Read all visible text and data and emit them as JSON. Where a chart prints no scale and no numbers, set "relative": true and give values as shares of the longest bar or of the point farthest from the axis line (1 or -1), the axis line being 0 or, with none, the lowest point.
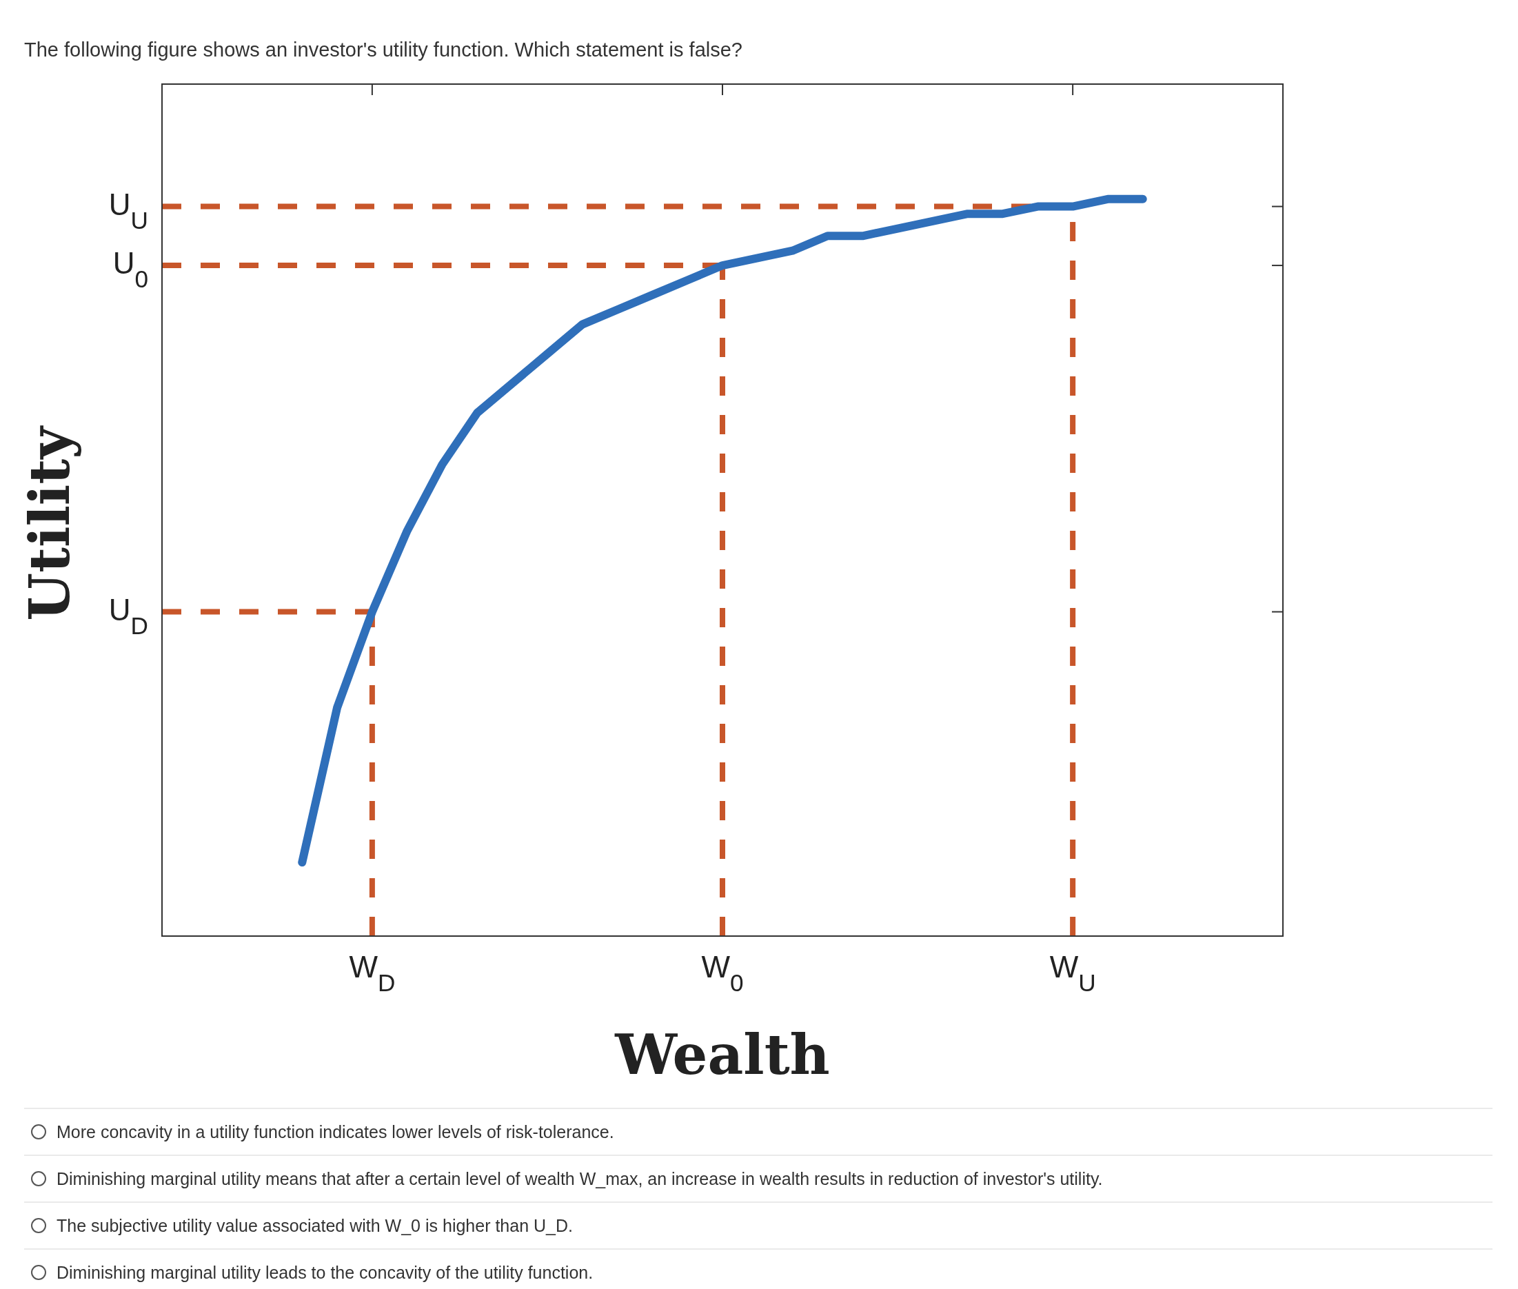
{
  "chart_data": {
    "type": "line",
    "title": "The following figure shows an investor's utility function. Which statement is false?",
    "xlabel": "Wealth",
    "ylabel": "Utility",
    "relative": true,
    "categories": [
      null,
      null,
      null,
      null,
      null,
      null,
      "W$_{D}$",
      null,
      null,
      null,
      null,
      null,
      null,
      null,
      null,
      null,
      "W$_{0}$",
      null,
      null,
      null,
      null,
      null,
      null,
      null,
      null,
      null,
      "W$_{U}$",
      null,
      null,
      null,
      null,
      null,
      null
    ],
    "marker": "none",
    "series": [
      {
        "color": "#2f6fba",
        "line_style": "solid",
        "values": [
          null,
          null,
          null,
          null,
          0.1,
          0.31,
          0.44,
          0.55,
          0.64,
          0.71,
          0.75,
          0.79,
          0.83,
          0.85,
          0.87,
          0.89,
          0.91,
          0.92,
          0.93,
          0.95,
          0.95,
          0.96,
          0.97,
          0.98,
          0.98,
          0.99,
          0.99,
          1.0,
          1,
          null,
          null,
          null,
          null
        ]
      }
    ],
    "ref_lines": [
      {
        "axis": "y",
        "value": 0.44,
        "label": "U$_{D}$",
        "color": "#c8562a",
        "line_style": "dashed"
      },
      {
        "axis": "y",
        "value": 0.91,
        "label": "U$_{0}$",
        "color": "#c8562a",
        "line_style": "dashed"
      },
      {
        "axis": "y",
        "value": 0.99,
        "label": "U$_{U}$",
        "color": "#c8562a",
        "line_style": "dashed"
      },
      {
        "axis": "x",
        "value": "W$_{D}$",
        "color": "#c8562a",
        "line_style": "dashed"
      },
      {
        "axis": "x",
        "value": "W$_{0}$",
        "color": "#c8562a",
        "line_style": "dashed"
      },
      {
        "axis": "x",
        "value": "W$_{U}$",
        "color": "#c8562a",
        "line_style": "dashed"
      }
    ],
    "annotations": [
      "More concavity in a utility function indicates lower levels of risk-tolerance.",
      "Diminishing marginal utility means that after a certain level of wealth W_max, an increase in wealth results in reduction of investor's utility.",
      "The subjective utility value associated with W_0 is higher than U_D.",
      "Diminishing marginal utility leads to the concavity of the utility function."
    ]
  }
}
